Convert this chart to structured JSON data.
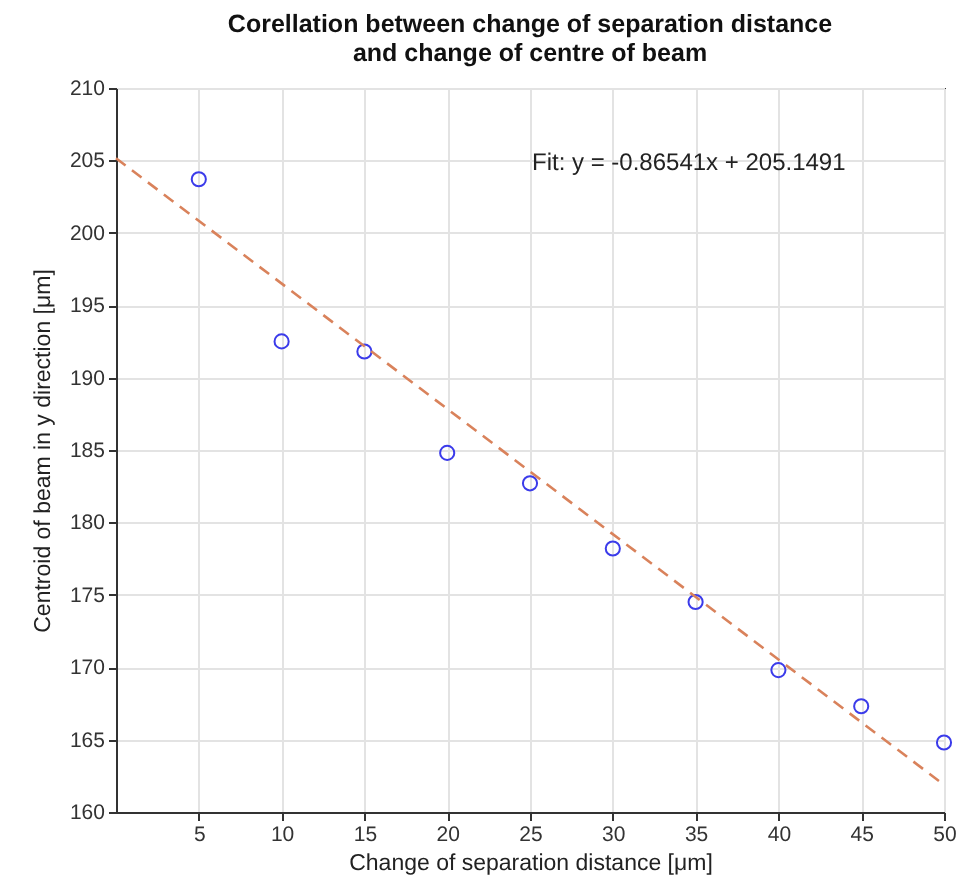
{
  "chart_data": {
    "type": "scatter",
    "title": [
      "Corellation between change of separation distance",
      "and change of centre of beam"
    ],
    "xlabel": "Change of separation distance [μm]",
    "ylabel": "Centroid of beam in y direction [μm]",
    "x": [
      5,
      10,
      15,
      20,
      25,
      30,
      35,
      40,
      45,
      50
    ],
    "series": [
      {
        "color": "#3b3bea",
        "marker": "circle",
        "values": [
          203.7,
          192.5,
          191.8,
          184.8,
          182.7,
          178.2,
          174.5,
          169.8,
          167.3,
          164.8
        ]
      },
      {
        "type": "line",
        "color": "#d9825b",
        "line_style": "dashed",
        "x": [
          0,
          50
        ],
        "values": [
          205.15,
          161.88
        ]
      }
    ],
    "xlim": [
      0,
      50
    ],
    "xticks": [
      5,
      10,
      15,
      20,
      25,
      30,
      35,
      40,
      45,
      50
    ],
    "ylim": [
      160,
      210
    ],
    "yticks": [
      160,
      165,
      170,
      175,
      180,
      185,
      190,
      195,
      200,
      205,
      210
    ],
    "grid": true,
    "annotations": [
      "Fit: y = -0.86541x + 205.1491"
    ]
  }
}
